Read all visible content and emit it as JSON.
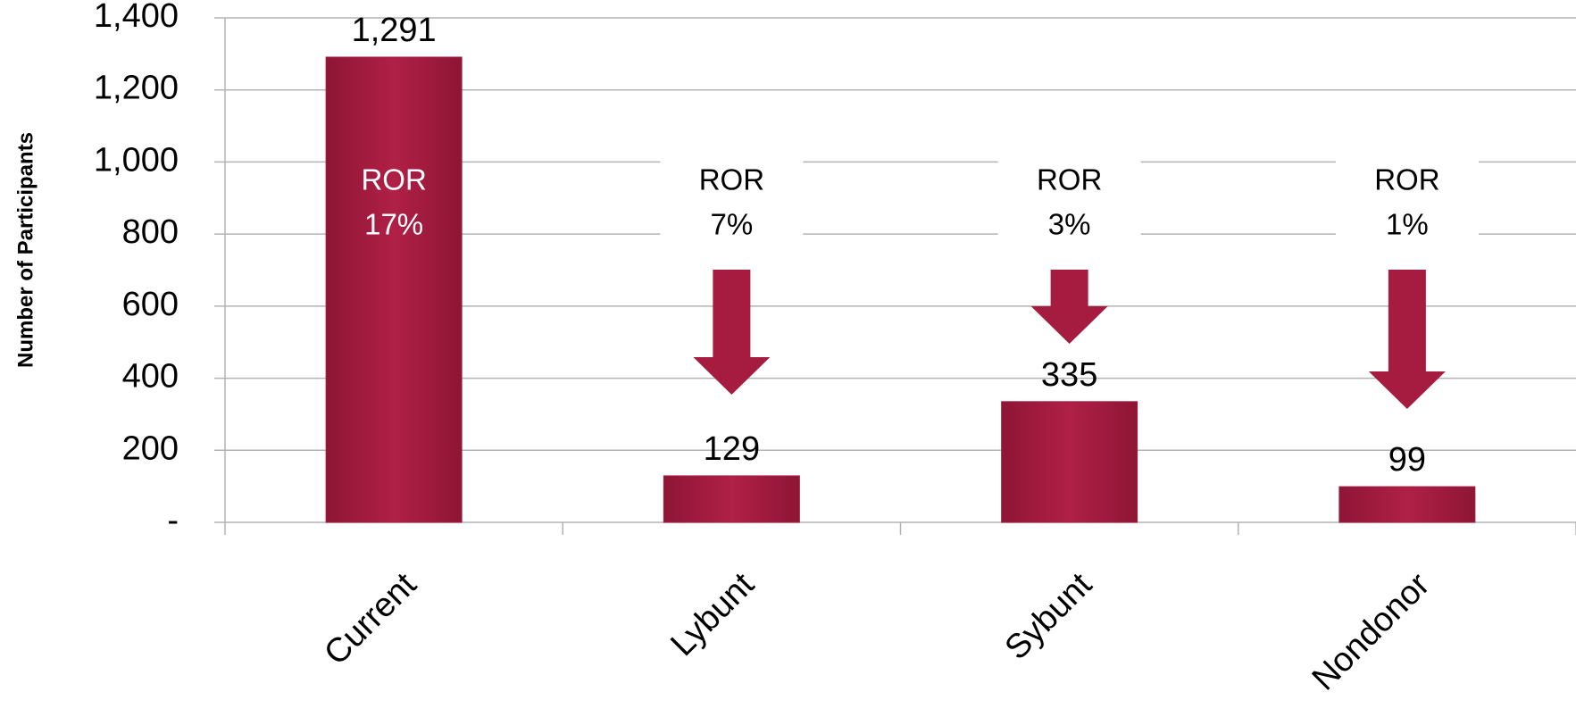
{
  "chart_data": {
    "type": "bar",
    "y_label": "Number of Participants",
    "categories": [
      "Current",
      "Lybunt",
      "Sybunt",
      "Nondonor"
    ],
    "values": [
      1291,
      129,
      335,
      99
    ],
    "value_labels": [
      "1,291",
      "129",
      "335",
      "99"
    ],
    "color": "#a51c40",
    "ylim": [
      0,
      1400
    ],
    "yticks": [
      {
        "value": 0,
        "label": "-"
      },
      200,
      400,
      600,
      800,
      {
        "value": 1000,
        "label": "1,000"
      },
      {
        "value": 1200,
        "label": "1,200"
      },
      {
        "value": 1400,
        "label": "1,400"
      }
    ],
    "grid": true,
    "ror": {
      "label": "ROR",
      "values": [
        17,
        7,
        3,
        1
      ],
      "value_labels": [
        "17%",
        "7%",
        "3%",
        "1%"
      ]
    }
  }
}
